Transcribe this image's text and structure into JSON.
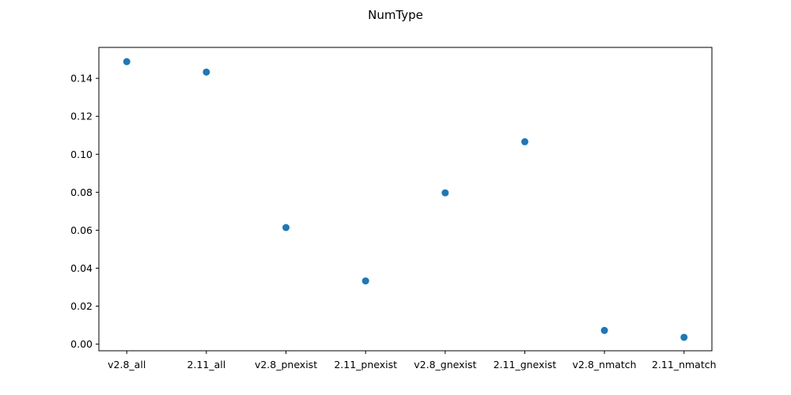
{
  "chart_data": {
    "type": "scatter",
    "title": "NumType",
    "xlabel": "",
    "ylabel": "",
    "categories": [
      "v2.8_all",
      "2.11_all",
      "v2.8_pnexist",
      "2.11_pnexist",
      "v2.8_gnexist",
      "2.11_gnexist",
      "v2.8_nmatch",
      "2.11_nmatch"
    ],
    "values": [
      0.1488,
      0.1433,
      0.0614,
      0.0333,
      0.0797,
      0.1066,
      0.0072,
      0.0036
    ],
    "ylim": [
      -0.0035,
      0.1563
    ],
    "yticks": [
      0.0,
      0.02,
      0.04,
      0.06,
      0.08,
      0.1,
      0.12,
      0.14
    ],
    "ytick_labels": [
      "0.00",
      "0.02",
      "0.04",
      "0.06",
      "0.08",
      "0.10",
      "0.12",
      "0.14"
    ],
    "grid": false,
    "colors": {
      "marker": "#1f77b4",
      "axes": "#000000",
      "background": "#ffffff"
    }
  }
}
